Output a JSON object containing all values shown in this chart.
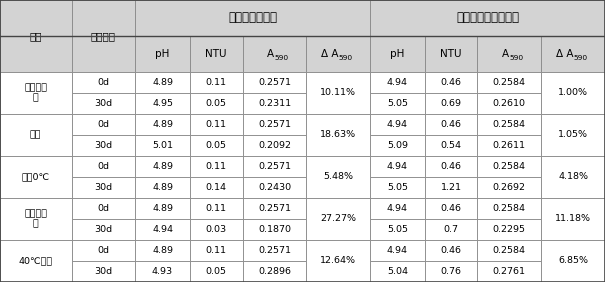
{
  "header_top_left_label": "环境",
  "header_top_left2_label": "放置时间",
  "header_caramel": "含焦糖色素酒体",
  "header_natural": "含复合天然色素酒体",
  "col_headers": [
    "pH",
    "NTU",
    "A590",
    "ΔA590",
    "pH",
    "NTU",
    "A590",
    "ΔA590"
  ],
  "env_groups": [
    {
      "name_line1": "实验室常",
      "name_line2": "温",
      "rows": [
        [
          "0d",
          "4.89",
          "0.11",
          "0.2571",
          "4.94",
          "0.46",
          "0.2584"
        ],
        [
          "30d",
          "4.95",
          "0.05",
          "0.2311",
          "5.05",
          "0.69",
          "0.2610"
        ]
      ],
      "delta_caramel": "10.11%",
      "delta_natural": "1.00%"
    },
    {
      "name_line1": "室外",
      "name_line2": "",
      "rows": [
        [
          "0d",
          "4.89",
          "0.11",
          "0.2571",
          "4.94",
          "0.46",
          "0.2584"
        ],
        [
          "30d",
          "5.01",
          "0.05",
          "0.2092",
          "5.09",
          "0.54",
          "0.2611"
        ]
      ],
      "delta_caramel": "18.63%",
      "delta_natural": "1.05%"
    },
    {
      "name_line1": "冰筘0℃",
      "name_line2": "",
      "rows": [
        [
          "0d",
          "4.89",
          "0.11",
          "0.2571",
          "4.94",
          "0.46",
          "0.2584"
        ],
        [
          "30d",
          "4.89",
          "0.14",
          "0.2430",
          "5.05",
          "1.21",
          "0.2692"
        ]
      ],
      "delta_caramel": "5.48%",
      "delta_natural": "4.18%"
    },
    {
      "name_line1": "光照培养",
      "name_line2": "筱",
      "rows": [
        [
          "0d",
          "4.89",
          "0.11",
          "0.2571",
          "4.94",
          "0.46",
          "0.2584"
        ],
        [
          "30d",
          "4.94",
          "0.03",
          "0.1870",
          "5.05",
          "0.7",
          "0.2295"
        ]
      ],
      "delta_caramel": "27.27%",
      "delta_natural": "11.18%"
    },
    {
      "name_line1": "40℃高温",
      "name_line2": "",
      "rows": [
        [
          "0d",
          "4.89",
          "0.11",
          "0.2571",
          "4.94",
          "0.46",
          "0.2584"
        ],
        [
          "30d",
          "4.93",
          "0.05",
          "0.2896",
          "5.04",
          "0.76",
          "0.2761"
        ]
      ],
      "delta_caramel": "12.64%",
      "delta_natural": "6.85%"
    }
  ],
  "header_bg": "#d3d3d3",
  "white_bg": "#ffffff",
  "border_color": "#888888",
  "font_size_data": 6.8,
  "font_size_header": 7.5,
  "font_size_big_header": 8.5
}
